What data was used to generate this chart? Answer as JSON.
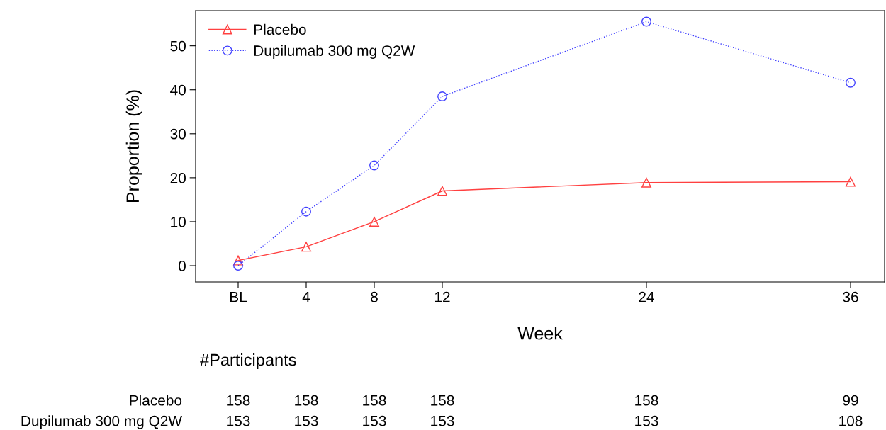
{
  "chart_data": {
    "type": "line",
    "xlabel": "Week",
    "ylabel": "Proportion (%)",
    "x": [
      0,
      4,
      8,
      12,
      24,
      36
    ],
    "xlim": [
      -2.5,
      38
    ],
    "xticks": [
      {
        "value": 0,
        "label": "BL"
      },
      4,
      8,
      12,
      24,
      36
    ],
    "ylim": [
      -3.7,
      58
    ],
    "yticks": [
      0,
      10,
      20,
      30,
      40,
      50
    ],
    "grid": false,
    "legend": "top left",
    "series": [
      {
        "name": "Placebo",
        "color": "#ff4040",
        "marker": "triangle",
        "line_style": "solid",
        "values": [
          1.2,
          4.3,
          10,
          17,
          18.9,
          19.1
        ]
      },
      {
        "name": "Dupilumab 300 mg Q2W",
        "color": "#4040ff",
        "marker": "circle",
        "line_style": "dotted",
        "values": [
          0,
          12.3,
          22.8,
          38.5,
          55.5,
          41.6
        ]
      }
    ],
    "annotations": [
      "#Participants",
      "Placebo",
      "158",
      "158",
      "158",
      "158",
      "158",
      "99",
      "Dupilumab 300 mg Q2W",
      "153",
      "153",
      "153",
      "153",
      "153",
      "108"
    ]
  }
}
